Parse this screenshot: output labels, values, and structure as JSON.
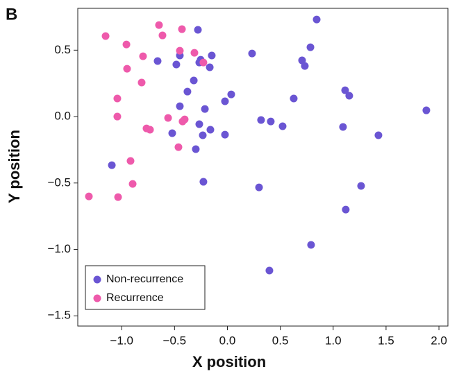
{
  "chart_data": {
    "type": "scatter",
    "panel_label": "B",
    "xlabel": "X position",
    "ylabel": "Y position",
    "xlim": [
      -1.415,
      2.085
    ],
    "ylim": [
      -1.577,
      0.815
    ],
    "xticks": [
      {
        "value": -1,
        "label": "−1.0"
      },
      {
        "value": -0.5,
        "label": "−0.5"
      },
      {
        "value": 0,
        "label": "0.0"
      },
      0.5,
      {
        "value": 1,
        "label": "1.0"
      },
      1.5,
      {
        "value": 2,
        "label": "2.0"
      }
    ],
    "yticks": [
      0.5,
      {
        "value": 0,
        "label": "0.0"
      },
      {
        "value": -0.5,
        "label": "−0.5"
      },
      {
        "value": -1,
        "label": "−1.0"
      },
      {
        "value": -1.5,
        "label": "−1.5"
      }
    ],
    "legend": "lower left",
    "series": [
      {
        "name": "Non-recurrence",
        "color": "#6a55d3",
        "x": [
          0.844,
          0.785,
          0.233,
          -0.279,
          -0.45,
          -0.253,
          -0.148,
          -0.66,
          -0.483,
          -0.266,
          -0.167,
          -0.318,
          -0.378,
          1.113,
          1.152,
          0.036,
          -0.023,
          0.627,
          -0.45,
          -0.213,
          1.881,
          0.318,
          0.41,
          0.522,
          1.093,
          -0.266,
          -0.161,
          -0.233,
          -0.023,
          -0.522,
          1.428,
          -0.299,
          -1.093,
          -0.227,
          0.299,
          1.264,
          1.119,
          0.791,
          0.397,
          0.706,
          0.732
        ],
        "y": [
          0.731,
          0.522,
          0.475,
          0.653,
          0.46,
          0.428,
          0.46,
          0.418,
          0.392,
          0.407,
          0.371,
          0.272,
          0.188,
          0.198,
          0.157,
          0.167,
          0.115,
          0.136,
          0.078,
          0.057,
          0.047,
          -0.026,
          -0.037,
          -0.073,
          -0.078,
          -0.057,
          -0.099,
          -0.141,
          -0.136,
          -0.125,
          -0.141,
          -0.245,
          -0.366,
          -0.491,
          -0.533,
          -0.522,
          -0.7,
          -0.966,
          -1.159,
          0.423,
          0.381
        ]
      },
      {
        "name": "Recurrence",
        "color": "#ee5aab",
        "x": [
          -1.152,
          -0.647,
          -0.614,
          -0.43,
          -0.955,
          -0.798,
          -0.45,
          -0.312,
          -0.227,
          -0.949,
          -0.811,
          -1.041,
          -1.041,
          -0.561,
          -0.765,
          -0.732,
          -0.404,
          -0.424,
          -0.463,
          -0.916,
          -0.896,
          -1.31,
          -1.034
        ],
        "y": [
          0.606,
          0.689,
          0.611,
          0.658,
          0.543,
          0.454,
          0.496,
          0.48,
          0.407,
          0.36,
          0.256,
          0.136,
          0.0,
          -0.01,
          -0.089,
          -0.099,
          -0.021,
          -0.037,
          -0.23,
          -0.334,
          -0.507,
          -0.601,
          -0.606
        ]
      }
    ]
  }
}
